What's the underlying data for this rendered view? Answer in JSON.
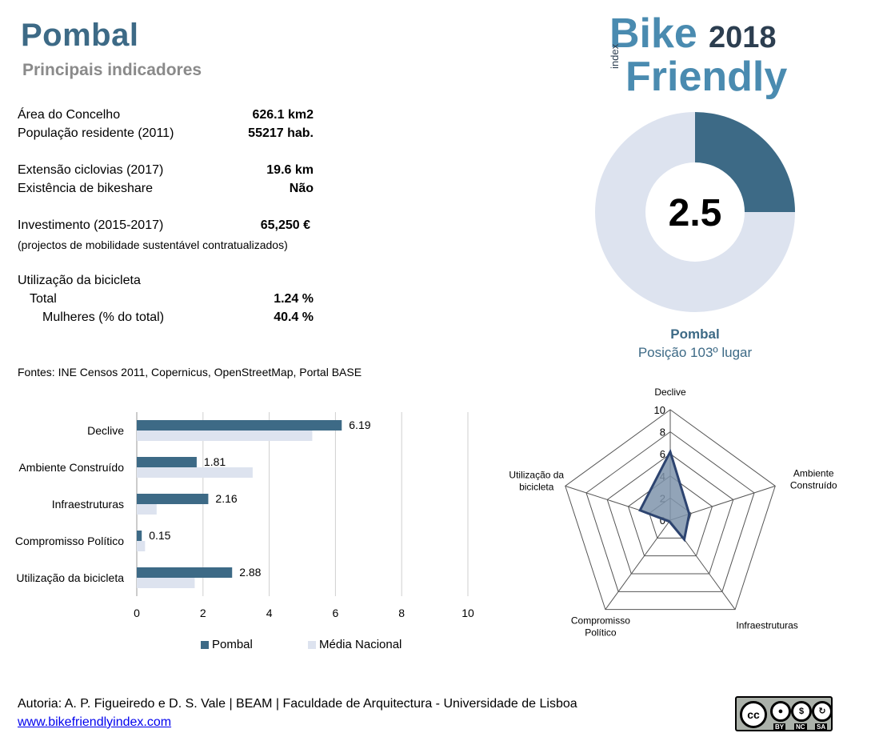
{
  "header": {
    "title": "Pombal",
    "subtitle": "Principais indicadores"
  },
  "logo": {
    "bike": "Bike",
    "year": "2018",
    "index": "index",
    "friendly": "Friendly"
  },
  "indicators": {
    "area_label": "Área do Concelho",
    "area_value": "626.1 km2",
    "pop_label": "População residente (2011)",
    "pop_value": "55217 hab.",
    "ciclovias_label": "Extensão ciclovias (2017)",
    "ciclovias_value": "19.6 km",
    "bikeshare_label": "Existência de bikeshare",
    "bikeshare_value": "Não",
    "invest_label": "Investimento (2015-2017)",
    "invest_value": "65,250 €",
    "invest_note": "(projectos de mobilidade sustentável contratualizados)",
    "uso_label": "Utilização da bicicleta",
    "total_label": "Total",
    "total_value": "1.24 %",
    "mulheres_label": "Mulheres (% do total)",
    "mulheres_value": "40.4 %"
  },
  "fontes": "Fontes: INE Censos 2011, Copernicus, OpenStreetMap,  Portal BASE",
  "donut": {
    "score_text": "2.5",
    "name": "Pombal",
    "rank": "Posição 103º lugar"
  },
  "legend": {
    "series1": "Pombal",
    "series2": "Média Nacional"
  },
  "footer": {
    "authors": "Autoria: A. P. Figueiredo e D. S. Vale | BEAM | Faculdade de Arquitectura - Universidade de Lisboa",
    "link": "www.bikefriendlyindex.com"
  },
  "license": {
    "cc": "cc",
    "by": "BY",
    "nc": "NC",
    "sa": "SA"
  },
  "colors": {
    "primary": "#3d6a86",
    "secondary": "#dde3ef",
    "grid": "#cfcfcf"
  },
  "chart_data": [
    {
      "type": "pie",
      "subtype": "donut",
      "values": [
        2.5,
        7.5
      ],
      "max": 10,
      "center_label": "2.5"
    },
    {
      "type": "bar",
      "orientation": "horizontal",
      "categories": [
        "Declive",
        "Ambiente Construído",
        "Infraestruturas",
        "Compromisso Político",
        "Utilização da bicicleta"
      ],
      "series": [
        {
          "name": "Pombal",
          "values": [
            6.19,
            1.81,
            2.16,
            0.15,
            2.88
          ],
          "data_labels": [
            "6.19",
            "1.81",
            "2.16",
            "0.15",
            "2.88"
          ]
        },
        {
          "name": "Média Nacional",
          "values": [
            5.3,
            3.5,
            0.6,
            0.25,
            1.75
          ]
        }
      ],
      "xlim": [
        0,
        10
      ],
      "xticks": [
        "0",
        "2",
        "4",
        "6",
        "8",
        "10"
      ],
      "grid": true,
      "legend": "bottom"
    },
    {
      "type": "radar",
      "axes": [
        "Declive",
        "Ambiente Construído",
        "Infraestruturas",
        "Compromisso Político",
        "Utilização da bicicleta"
      ],
      "axis_labels": [
        [
          "Declive"
        ],
        [
          "Ambiente",
          "Construído"
        ],
        [
          "Infraestruturas"
        ],
        [
          "Compromisso",
          "Político"
        ],
        [
          "Utilização da",
          "bicicleta"
        ]
      ],
      "series": [
        {
          "name": "Pombal",
          "values": [
            6.19,
            1.81,
            2.16,
            0.15,
            2.88
          ]
        }
      ],
      "rlim": [
        0,
        10
      ],
      "rticks": [
        "0",
        "2",
        "4",
        "6",
        "8",
        "10"
      ]
    }
  ]
}
